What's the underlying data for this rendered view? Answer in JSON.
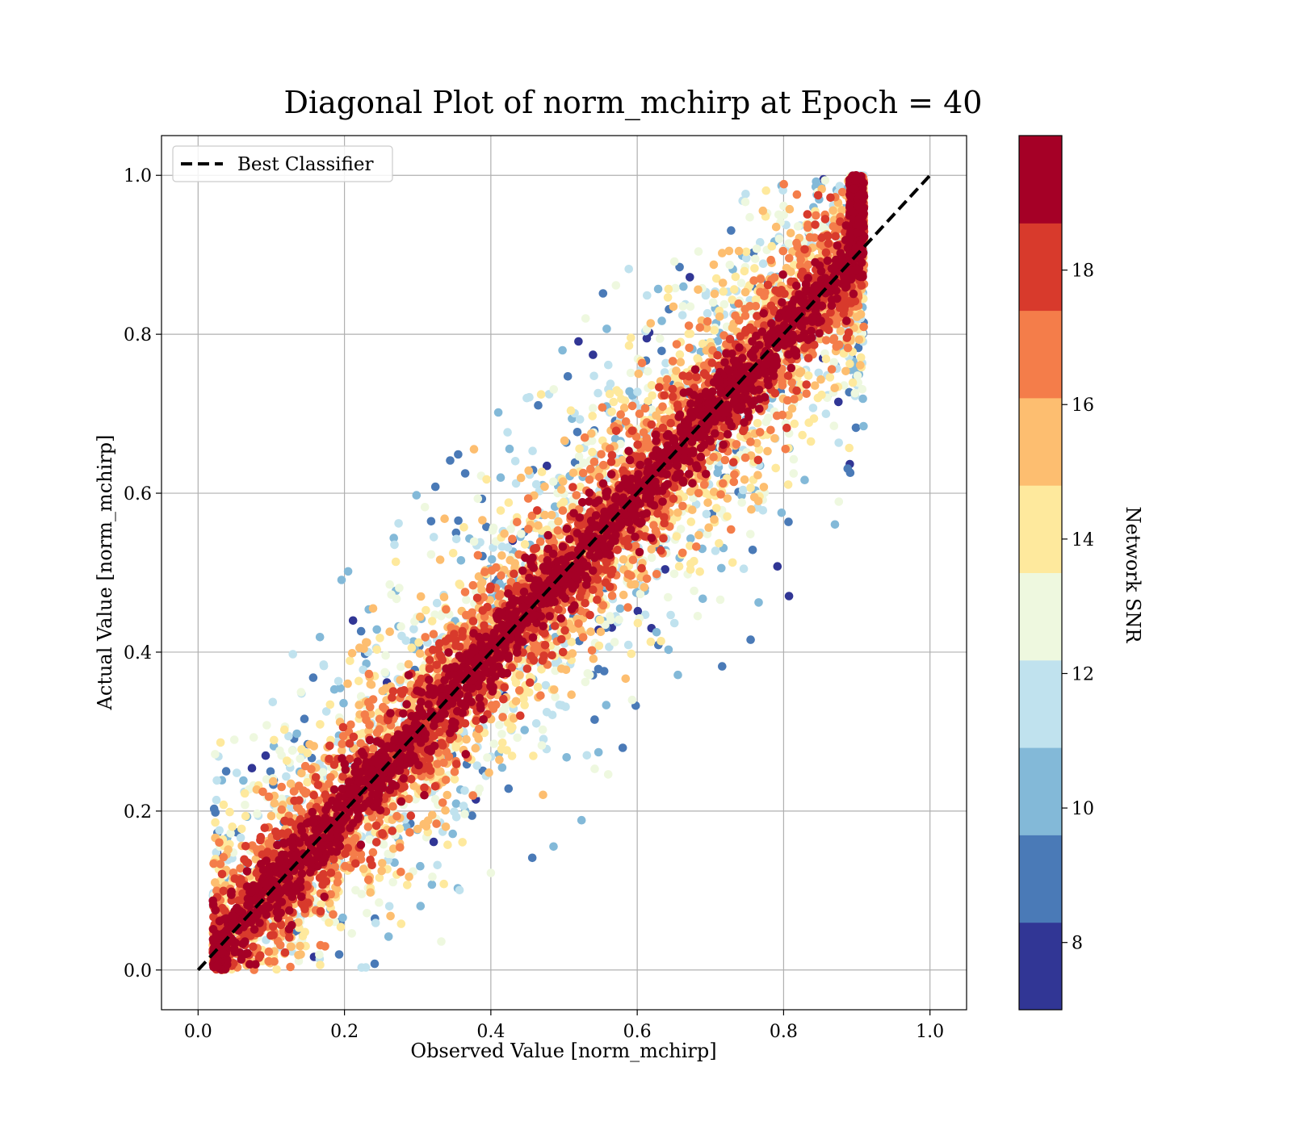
{
  "chart_data": {
    "type": "scatter",
    "title": "Diagonal Plot of norm_mchirp at Epoch = 40",
    "xlabel": "Observed Value [norm_mchirp]",
    "ylabel": "Actual Value [norm_mchirp]",
    "xlim": [
      -0.05,
      1.05
    ],
    "ylim": [
      -0.05,
      1.05
    ],
    "xticks": [
      "0.0",
      "0.2",
      "0.4",
      "0.6",
      "0.8",
      "1.0"
    ],
    "yticks": [
      "0.0",
      "0.2",
      "0.4",
      "0.6",
      "0.8",
      "1.0"
    ],
    "grid": true,
    "legend": {
      "placement": "top-left",
      "entries": [
        "Best Classifier"
      ]
    },
    "reference_line": {
      "name": "Best Classifier",
      "x": [
        0.0,
        1.0
      ],
      "y": [
        0.0,
        1.0
      ],
      "style": "dashed",
      "color": "#000000"
    },
    "point_cloud": {
      "description_note": "",
      "color_variable": "Network SNR",
      "count": 9000
    },
    "colorbar": {
      "label": "Network SNR",
      "range": [
        7,
        20
      ],
      "ticks": [
        "8",
        "10",
        "12",
        "14",
        "16",
        "18"
      ],
      "tick_values": [
        8,
        10,
        12,
        14,
        16,
        18
      ],
      "bands": [
        {
          "from": 7.0,
          "to": 8.3,
          "color": "#313695"
        },
        {
          "from": 8.3,
          "to": 9.6,
          "color": "#4a7ab7"
        },
        {
          "from": 9.6,
          "to": 10.9,
          "color": "#83b9d8"
        },
        {
          "from": 10.9,
          "to": 12.2,
          "color": "#c0e2ee"
        },
        {
          "from": 12.2,
          "to": 13.5,
          "color": "#eef8df"
        },
        {
          "from": 13.5,
          "to": 14.8,
          "color": "#fee99d"
        },
        {
          "from": 14.8,
          "to": 16.1,
          "color": "#fdbe70"
        },
        {
          "from": 16.1,
          "to": 17.4,
          "color": "#f47d4a"
        },
        {
          "from": 17.4,
          "to": 18.7,
          "color": "#d83a2c"
        },
        {
          "from": 18.7,
          "to": 20.0,
          "color": "#a50026"
        }
      ]
    }
  }
}
